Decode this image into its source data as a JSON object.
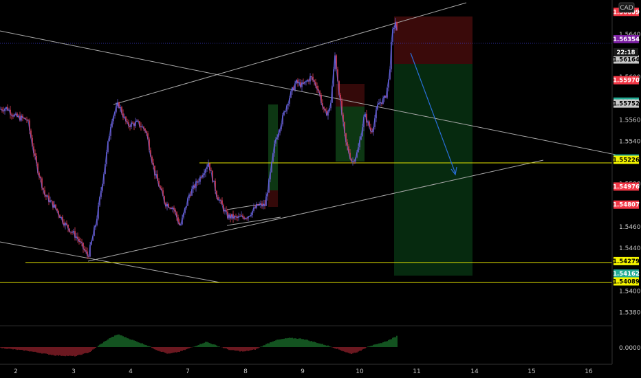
{
  "chart_data": {
    "type": "candlestick",
    "currency": "CAD",
    "countdown": "22:18",
    "x_ticks": [
      "2",
      "3",
      "4",
      "7",
      "8",
      "9",
      "10",
      "11",
      "14",
      "15",
      "16"
    ],
    "y_ticks": [
      "1.56400",
      "1.56000",
      "1.55600",
      "1.55400",
      "1.55000",
      "1.54600",
      "1.54400",
      "1.54000",
      "1.53800"
    ],
    "y_range": [
      1.537,
      1.5672
    ],
    "osc_tick": "0.00000",
    "price_labels": [
      {
        "text": "1.56609",
        "value": 1.56609,
        "bg": "#f23645",
        "fg": "#ffffff"
      },
      {
        "text": "1.56354",
        "value": 1.56354,
        "bg": "#7b1fa2",
        "fg": "#ffffff"
      },
      {
        "text": "1.56164",
        "value": 1.56164,
        "bg": "#c8c8c8",
        "fg": "#000000"
      },
      {
        "text": "1.55970",
        "value": 1.5597,
        "bg": "#f23645",
        "fg": "#ffffff"
      },
      {
        "text": "1.55770",
        "value": 1.5577,
        "bg": "#22ab94",
        "fg": "#ffffff"
      },
      {
        "text": "1.55752",
        "value": 1.55752,
        "bg": "#c8c8c8",
        "fg": "#000000"
      },
      {
        "text": "1.55238",
        "value": 1.55238,
        "bg": "#22ab94",
        "fg": "#ffffff"
      },
      {
        "text": "1.55226",
        "value": 1.55226,
        "bg": "#f5f500",
        "fg": "#000000"
      },
      {
        "text": "1.54976",
        "value": 1.54976,
        "bg": "#f23645",
        "fg": "#ffffff"
      },
      {
        "text": "1.54807",
        "value": 1.54807,
        "bg": "#f23645",
        "fg": "#ffffff"
      },
      {
        "text": "1.54279",
        "value": 1.54279,
        "bg": "#f5f500",
        "fg": "#000000"
      },
      {
        "text": "1.54162",
        "value": 1.54162,
        "bg": "#22ab94",
        "fg": "#ffffff"
      },
      {
        "text": "1.54089",
        "value": 1.54089,
        "bg": "#f5f500",
        "fg": "#000000"
      }
    ],
    "price_path": [
      [
        0,
        1.557
      ],
      [
        10,
        1.5571
      ],
      [
        22,
        1.5563
      ],
      [
        40,
        1.556
      ],
      [
        52,
        1.552
      ],
      [
        65,
        1.549
      ],
      [
        80,
        1.5478
      ],
      [
        95,
        1.5462
      ],
      [
        112,
        1.545
      ],
      [
        128,
        1.5432
      ],
      [
        140,
        1.5465
      ],
      [
        152,
        1.5515
      ],
      [
        162,
        1.556
      ],
      [
        172,
        1.5575
      ],
      [
        185,
        1.5555
      ],
      [
        200,
        1.5557
      ],
      [
        212,
        1.555
      ],
      [
        225,
        1.551
      ],
      [
        240,
        1.5482
      ],
      [
        252,
        1.5478
      ],
      [
        262,
        1.546
      ],
      [
        275,
        1.549
      ],
      [
        290,
        1.5505
      ],
      [
        303,
        1.552
      ],
      [
        315,
        1.549
      ],
      [
        330,
        1.547
      ],
      [
        345,
        1.5468
      ],
      [
        360,
        1.547
      ],
      [
        375,
        1.548
      ],
      [
        385,
        1.548
      ],
      [
        392,
        1.5505
      ],
      [
        400,
        1.554
      ],
      [
        410,
        1.556
      ],
      [
        420,
        1.558
      ],
      [
        430,
        1.5595
      ],
      [
        440,
        1.5592
      ],
      [
        452,
        1.56
      ],
      [
        462,
        1.559
      ],
      [
        472,
        1.5565
      ],
      [
        480,
        1.557
      ],
      [
        487,
        1.562
      ],
      [
        495,
        1.5575
      ],
      [
        502,
        1.554
      ],
      [
        512,
        1.552
      ],
      [
        520,
        1.553
      ],
      [
        530,
        1.5565
      ],
      [
        540,
        1.5548
      ],
      [
        550,
        1.5575
      ],
      [
        560,
        1.558
      ],
      [
        566,
        1.56
      ],
      [
        570,
        1.564
      ],
      [
        575,
        1.5652
      ],
      [
        578,
        1.5636
      ]
    ],
    "oscillator": [
      [
        0,
        -0.05
      ],
      [
        40,
        -0.25
      ],
      [
        80,
        -0.55
      ],
      [
        110,
        -0.6
      ],
      [
        130,
        -0.35
      ],
      [
        145,
        0.15
      ],
      [
        160,
        0.6
      ],
      [
        172,
        0.85
      ],
      [
        185,
        0.6
      ],
      [
        200,
        0.35
      ],
      [
        215,
        0.1
      ],
      [
        228,
        -0.2
      ],
      [
        245,
        -0.45
      ],
      [
        262,
        -0.3
      ],
      [
        280,
        0.0
      ],
      [
        300,
        0.35
      ],
      [
        318,
        0.05
      ],
      [
        335,
        -0.2
      ],
      [
        355,
        -0.3
      ],
      [
        372,
        -0.15
      ],
      [
        385,
        0.15
      ],
      [
        400,
        0.45
      ],
      [
        420,
        0.6
      ],
      [
        440,
        0.55
      ],
      [
        460,
        0.3
      ],
      [
        480,
        0.05
      ],
      [
        495,
        -0.2
      ],
      [
        510,
        -0.45
      ],
      [
        522,
        -0.3
      ],
      [
        535,
        0.05
      ],
      [
        550,
        0.2
      ],
      [
        565,
        0.45
      ],
      [
        578,
        0.75
      ]
    ]
  }
}
